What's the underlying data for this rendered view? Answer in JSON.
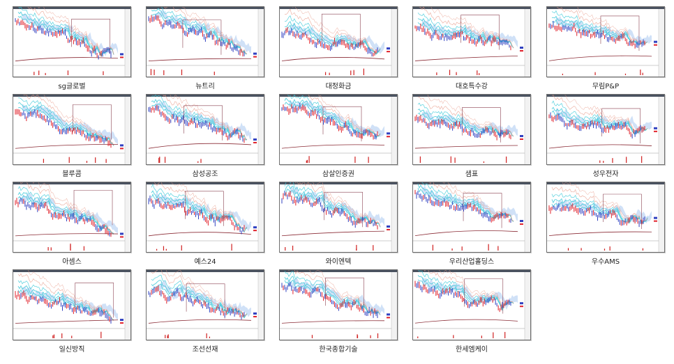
{
  "thumbnails": [
    {
      "label": "sg글로벌"
    },
    {
      "label": "뉴트리"
    },
    {
      "label": "대정화금"
    },
    {
      "label": "대호특수강"
    },
    {
      "label": "무림P&P"
    },
    {
      "label": "블루콤"
    },
    {
      "label": "삼성공조"
    },
    {
      "label": "삼살인증권"
    },
    {
      "label": "샘표"
    },
    {
      "label": "성우전자"
    },
    {
      "label": "아셈스"
    },
    {
      "label": "예스24"
    },
    {
      "label": "와이엔텍"
    },
    {
      "label": "우리산업홀딩스"
    },
    {
      "label": "우수AMS"
    },
    {
      "label": "일신방직"
    },
    {
      "label": "조선선재"
    },
    {
      "label": "한국종합기술"
    },
    {
      "label": "한세엠케이"
    }
  ],
  "colors": {
    "price_up": "#e0202a",
    "price_down": "#3040c0",
    "cloud": "#a9c8f0",
    "ma_cyan": "#3ac9d8",
    "ma_salmon": "#e89a88",
    "ma_maroon": "#8a2a34",
    "box_line": "#8a4050",
    "volume": "#d02020"
  }
}
